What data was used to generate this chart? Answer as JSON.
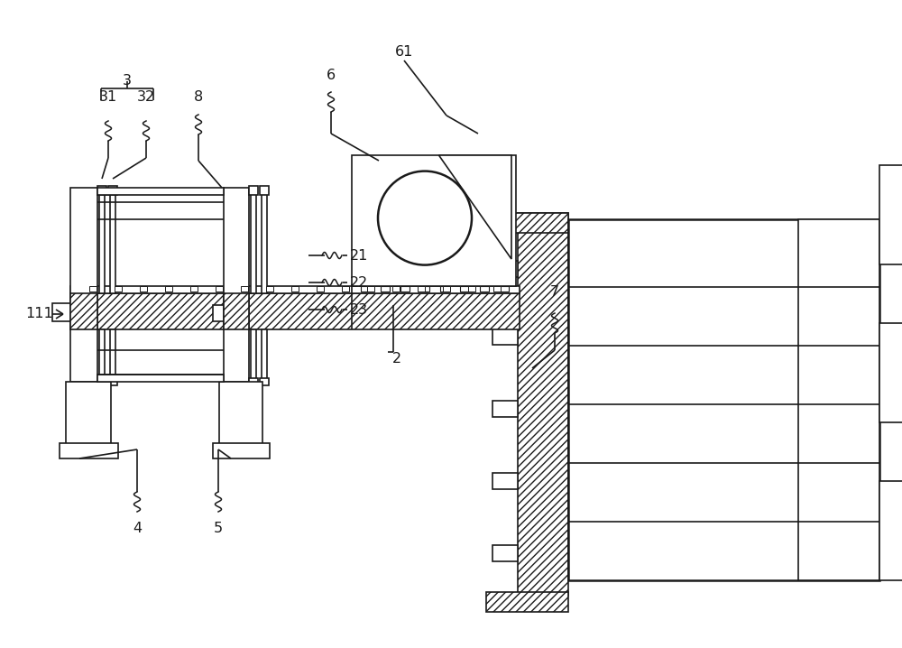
{
  "bg_color": "#ffffff",
  "line_color": "#1a1a1a",
  "lw": 1.2,
  "lw2": 1.8,
  "fig_width": 10.0,
  "fig_height": 7.18
}
